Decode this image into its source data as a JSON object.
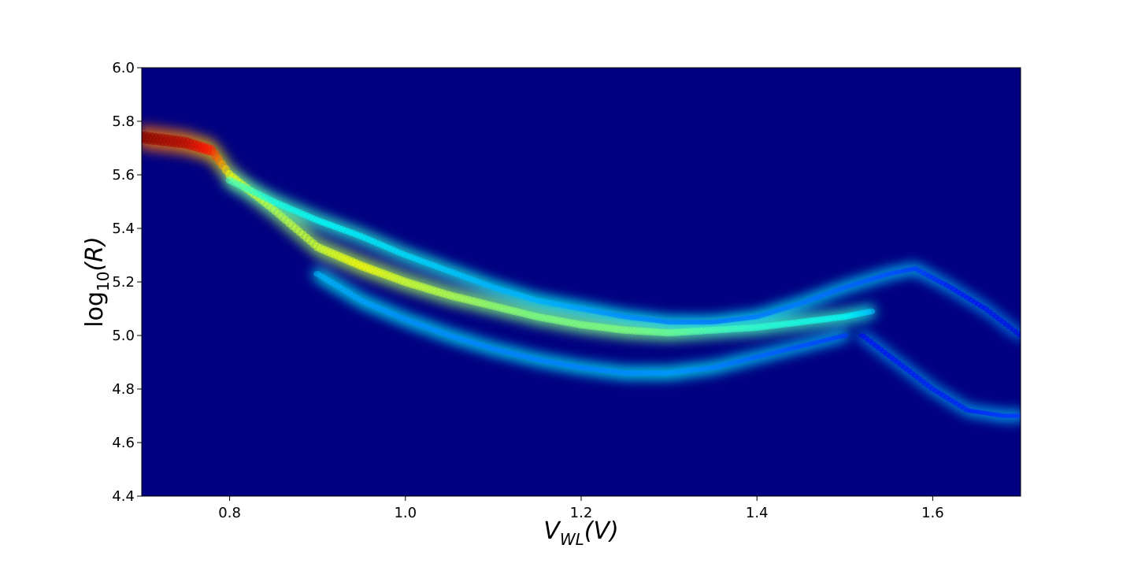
{
  "chart_data": {
    "type": "heatmap",
    "title": "",
    "xlabel": {
      "main": "V",
      "sub": "WL",
      "rest": "(V)"
    },
    "ylabel": {
      "pre": "log",
      "sub": "10",
      "rest": "(R)"
    },
    "xlim": [
      0.7,
      1.7
    ],
    "ylim": [
      4.4,
      6.0
    ],
    "xticks": [
      0.8,
      1.0,
      1.2,
      1.4,
      1.6
    ],
    "xtick_labels": [
      "0.8",
      "1.0",
      "1.2",
      "1.4",
      "1.6"
    ],
    "yticks": [
      4.4,
      4.6,
      4.8,
      5.0,
      5.2,
      5.4,
      5.6,
      5.8,
      6.0
    ],
    "ytick_labels": [
      "4.4",
      "4.6",
      "4.8",
      "5.0",
      "5.2",
      "5.4",
      "5.6",
      "5.8",
      "6.0"
    ],
    "colormap": "jet",
    "background_color": "#000080",
    "grid": false,
    "legend": "none",
    "density_bands": [
      {
        "x": [
          0.7,
          0.75,
          0.78,
          0.8,
          0.85,
          0.9,
          0.95,
          1.0,
          1.05,
          1.1,
          1.15,
          1.2,
          1.25,
          1.3,
          1.35,
          1.4,
          1.45,
          1.5,
          1.53
        ],
        "y": [
          5.74,
          5.72,
          5.69,
          5.6,
          5.47,
          5.33,
          5.26,
          5.2,
          5.15,
          5.11,
          5.07,
          5.04,
          5.02,
          5.01,
          5.02,
          5.03,
          5.05,
          5.07,
          5.09
        ],
        "intensity": [
          1.0,
          0.95,
          0.85,
          0.62,
          0.55,
          0.58,
          0.62,
          0.58,
          0.55,
          0.52,
          0.5,
          0.5,
          0.5,
          0.48,
          0.45,
          0.42,
          0.4,
          0.38,
          0.32
        ]
      },
      {
        "x": [
          0.8,
          0.85,
          0.9,
          0.95,
          1.0,
          1.05,
          1.1,
          1.15,
          1.2,
          1.25,
          1.3,
          1.35,
          1.4,
          1.45,
          1.5,
          1.55,
          1.58,
          1.62,
          1.66,
          1.7
        ],
        "y": [
          5.58,
          5.5,
          5.43,
          5.37,
          5.3,
          5.24,
          5.18,
          5.13,
          5.1,
          5.07,
          5.05,
          5.05,
          5.07,
          5.12,
          5.18,
          5.23,
          5.25,
          5.18,
          5.1,
          5.0
        ],
        "intensity": [
          0.45,
          0.4,
          0.38,
          0.36,
          0.34,
          0.32,
          0.3,
          0.3,
          0.28,
          0.26,
          0.25,
          0.24,
          0.24,
          0.24,
          0.22,
          0.2,
          0.18,
          0.14,
          0.12,
          0.1
        ]
      },
      {
        "x": [
          0.9,
          0.95,
          1.0,
          1.05,
          1.1,
          1.15,
          1.2,
          1.25,
          1.3,
          1.35,
          1.4,
          1.45,
          1.5
        ],
        "y": [
          5.23,
          5.13,
          5.06,
          5.0,
          4.95,
          4.91,
          4.88,
          4.86,
          4.86,
          4.88,
          4.92,
          4.96,
          5.0
        ],
        "intensity": [
          0.3,
          0.28,
          0.26,
          0.26,
          0.25,
          0.25,
          0.25,
          0.26,
          0.27,
          0.25,
          0.22,
          0.2,
          0.18
        ]
      },
      {
        "x": [
          1.52,
          1.56,
          1.6,
          1.64,
          1.68,
          1.7
        ],
        "y": [
          5.0,
          4.9,
          4.8,
          4.72,
          4.7,
          4.7
        ],
        "intensity": [
          0.12,
          0.13,
          0.14,
          0.15,
          0.17,
          0.18
        ]
      }
    ]
  }
}
